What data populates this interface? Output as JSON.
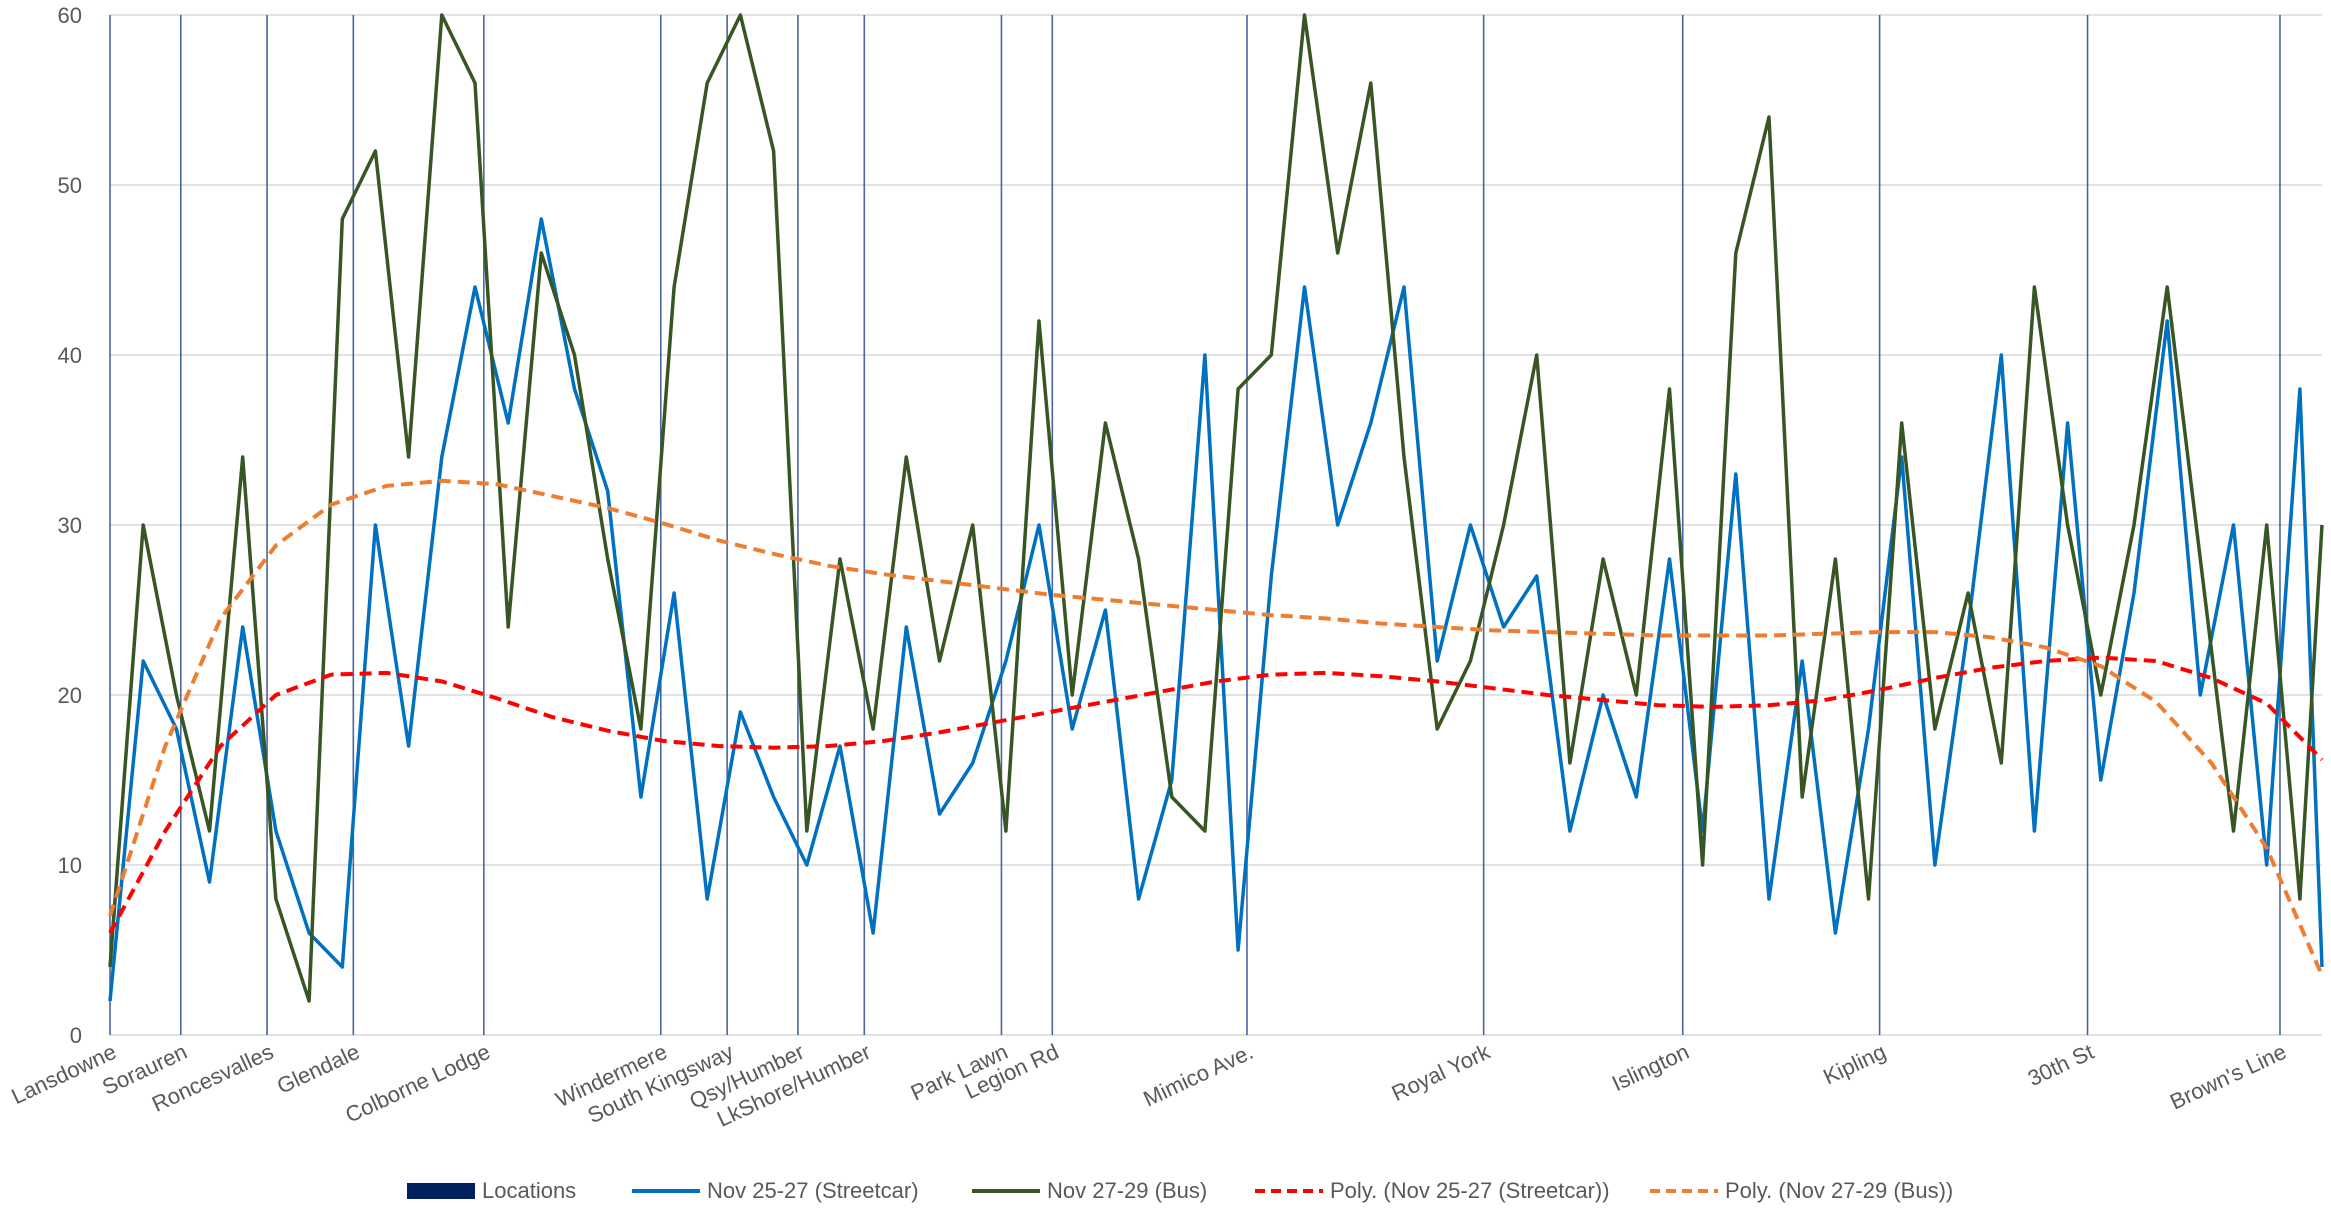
{
  "chart_data": {
    "type": "line",
    "title": "",
    "xlabel": "",
    "ylabel": "",
    "ylim": [
      0,
      60
    ],
    "yticks": [
      0,
      10,
      20,
      30,
      40,
      50,
      60
    ],
    "grid": true,
    "legend_position": "bottom",
    "x_range": [
      0,
      100
    ],
    "locations": [
      {
        "name": "Lansdowne",
        "x": 0.0
      },
      {
        "name": "Sorauren",
        "x": 3.2
      },
      {
        "name": "Roncesvalles",
        "x": 7.1
      },
      {
        "name": "Glendale",
        "x": 11.0
      },
      {
        "name": "Colborne Lodge",
        "x": 16.9
      },
      {
        "name": "Windermere",
        "x": 24.9
      },
      {
        "name": "South Kingsway",
        "x": 27.9
      },
      {
        "name": "Qsy/Humber",
        "x": 31.1
      },
      {
        "name": "LkShore/Humber",
        "x": 34.1
      },
      {
        "name": "Park Lawn",
        "x": 40.3
      },
      {
        "name": "Legion Rd",
        "x": 42.6
      },
      {
        "name": "Mimico Ave.",
        "x": 51.4
      },
      {
        "name": "Royal York",
        "x": 62.1
      },
      {
        "name": "Islington",
        "x": 71.1
      },
      {
        "name": "Kipling",
        "x": 80.0
      },
      {
        "name": "30th St",
        "x": 89.4
      },
      {
        "name": "Brown's Line",
        "x": 98.1
      }
    ],
    "series": [
      {
        "name": "Nov 25-27 (Streetcar)",
        "color": "#0070c0",
        "style": "solid",
        "x": [
          0,
          1.5,
          3,
          4.5,
          6,
          7.5,
          9,
          10.5,
          12,
          13.5,
          15,
          16.5,
          18,
          19.5,
          21,
          22.5,
          24,
          25.5,
          27,
          28.5,
          30,
          31.5,
          33,
          34.5,
          36,
          37.5,
          39,
          40.5,
          42,
          43.5,
          45,
          46.5,
          48,
          49.5,
          51,
          52.5,
          54,
          55.5,
          57,
          58.5,
          60,
          61.5,
          63,
          64.5,
          66,
          67.5,
          69,
          70.5,
          72,
          73.5,
          75,
          76.5,
          78,
          79.5,
          81,
          82.5,
          84,
          85.5,
          87,
          88.5,
          90,
          91.5,
          93,
          94.5,
          96,
          97.5,
          99,
          100
        ],
        "values": [
          2,
          22,
          18,
          9,
          24,
          12,
          6,
          4,
          30,
          17,
          34,
          44,
          36,
          48,
          38,
          32,
          14,
          26,
          8,
          19,
          14,
          10,
          17,
          6,
          24,
          13,
          16,
          22,
          30,
          18,
          25,
          8,
          15,
          40,
          5,
          27,
          44,
          30,
          36,
          44,
          22,
          30,
          24,
          27,
          12,
          20,
          14,
          28,
          12,
          33,
          8,
          22,
          6,
          18,
          34,
          10,
          24,
          40,
          12,
          36,
          15,
          26,
          42,
          20,
          30,
          10,
          38,
          4
        ]
      },
      {
        "name": "Nov 27-29 (Bus)",
        "color": "#375623",
        "style": "solid",
        "x": [
          0,
          1.5,
          3,
          4.5,
          6,
          7.5,
          9,
          10.5,
          12,
          13.5,
          15,
          16.5,
          18,
          19.5,
          21,
          22.5,
          24,
          25.5,
          27,
          28.5,
          30,
          31.5,
          33,
          34.5,
          36,
          37.5,
          39,
          40.5,
          42,
          43.5,
          45,
          46.5,
          48,
          49.5,
          51,
          52.5,
          54,
          55.5,
          57,
          58.5,
          60,
          61.5,
          63,
          64.5,
          66,
          67.5,
          69,
          70.5,
          72,
          73.5,
          75,
          76.5,
          78,
          79.5,
          81,
          82.5,
          84,
          85.5,
          87,
          88.5,
          90,
          91.5,
          93,
          94.5,
          96,
          97.5,
          99,
          100
        ],
        "values": [
          4,
          30,
          20,
          12,
          34,
          8,
          2,
          48,
          52,
          34,
          62,
          56,
          24,
          46,
          40,
          28,
          18,
          44,
          56,
          60,
          52,
          12,
          28,
          18,
          34,
          22,
          30,
          12,
          42,
          20,
          36,
          28,
          14,
          12,
          38,
          40,
          60,
          46,
          56,
          34,
          18,
          22,
          30,
          40,
          16,
          28,
          20,
          38,
          10,
          46,
          54,
          14,
          28,
          8,
          36,
          18,
          26,
          16,
          44,
          30,
          20,
          30,
          44,
          28,
          12,
          30,
          8,
          30
        ]
      },
      {
        "name": "Poly. (Nov 25-27 (Streetcar))",
        "color": "#ff0000",
        "style": "dash",
        "x": [
          0,
          2.5,
          5,
          7.5,
          10,
          12.5,
          15,
          17.5,
          20,
          22.5,
          25,
          27.5,
          30,
          32.5,
          35,
          37.5,
          40,
          42.5,
          45,
          47.5,
          50,
          52.5,
          55,
          57.5,
          60,
          62.5,
          65,
          67.5,
          70,
          72.5,
          75,
          77.5,
          80,
          82.5,
          85,
          87.5,
          90,
          92.5,
          95,
          97.5,
          100
        ],
        "values": [
          6,
          12,
          17,
          20,
          21.2,
          21.3,
          20.8,
          19.8,
          18.7,
          17.9,
          17.3,
          17,
          16.9,
          17,
          17.3,
          17.8,
          18.4,
          19,
          19.6,
          20.2,
          20.8,
          21.2,
          21.3,
          21.1,
          20.8,
          20.4,
          20,
          19.7,
          19.4,
          19.3,
          19.4,
          19.7,
          20.3,
          21,
          21.6,
          22,
          22.2,
          22,
          21,
          19.5,
          16.2
        ]
      },
      {
        "name": "Poly. (Nov 27-29 (Bus))",
        "color": "#ed7d31",
        "style": "dash",
        "x": [
          0,
          2.5,
          5,
          7.5,
          10,
          12.5,
          15,
          17.5,
          20,
          22.5,
          25,
          27.5,
          30,
          32.5,
          35,
          37.5,
          40,
          42.5,
          45,
          47.5,
          50,
          52.5,
          55,
          57.5,
          60,
          62.5,
          65,
          67.5,
          70,
          72.5,
          75,
          77.5,
          80,
          82.5,
          85,
          87.5,
          90,
          92.5,
          95,
          97.5,
          100
        ],
        "values": [
          7,
          17,
          24.5,
          28.8,
          31.2,
          32.3,
          32.6,
          32.4,
          31.7,
          31,
          30.1,
          29.1,
          28.3,
          27.6,
          27.1,
          26.7,
          26.3,
          25.9,
          25.6,
          25.3,
          25,
          24.7,
          24.5,
          24.2,
          24,
          23.8,
          23.7,
          23.6,
          23.5,
          23.5,
          23.5,
          23.6,
          23.7,
          23.7,
          23.4,
          22.8,
          21.7,
          19.6,
          16,
          11,
          3.5
        ]
      }
    ],
    "legend": [
      {
        "label": "Locations",
        "color": "#002060",
        "style": "bar"
      },
      {
        "label": "Nov 25-27 (Streetcar)",
        "color": "#0070c0",
        "style": "solid"
      },
      {
        "label": "Nov 27-29 (Bus)",
        "color": "#375623",
        "style": "solid"
      },
      {
        "label": "Poly. (Nov 25-27 (Streetcar))",
        "color": "#ff0000",
        "style": "dash"
      },
      {
        "label": "Poly. (Nov 27-29 (Bus))",
        "color": "#ed7d31",
        "style": "dash"
      }
    ]
  }
}
